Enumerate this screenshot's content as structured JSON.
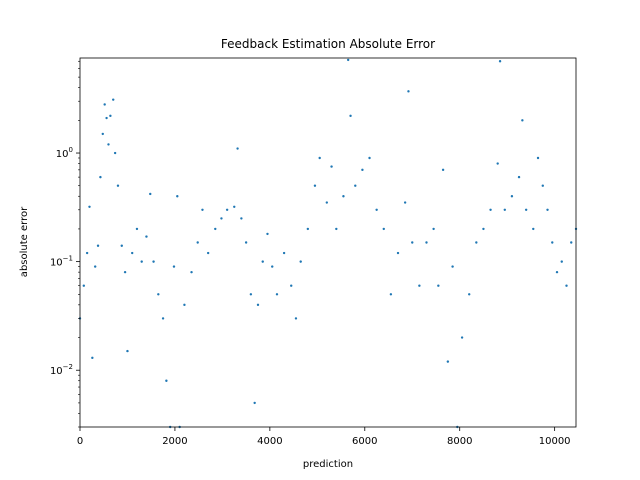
{
  "chart_data": {
    "type": "scatter",
    "title": "Feedback Estimation Absolute Error",
    "xlabel": "prediction",
    "ylabel": "absolute error",
    "xlim": [
      0,
      10450
    ],
    "ylim": [
      0.003,
      7.5
    ],
    "yscale": "log",
    "grid": false,
    "legend": "none",
    "point_color": "#1f77b4",
    "x_ticks": [
      0,
      2000,
      4000,
      6000,
      8000,
      10000
    ],
    "y_ticks": [
      {
        "value": 0.01,
        "label": "10",
        "exp": "−2"
      },
      {
        "value": 0.1,
        "label": "10",
        "exp": "−1"
      },
      {
        "value": 1,
        "label": "10",
        "exp": "0"
      }
    ],
    "series": [
      {
        "values": [
          [
            0,
            0.03
          ],
          [
            80,
            0.06
          ],
          [
            150,
            0.12
          ],
          [
            200,
            0.32
          ],
          [
            260,
            0.013
          ],
          [
            320,
            0.09
          ],
          [
            380,
            0.14
          ],
          [
            430,
            0.6
          ],
          [
            480,
            1.5
          ],
          [
            520,
            2.8
          ],
          [
            560,
            2.1
          ],
          [
            600,
            1.2
          ],
          [
            640,
            2.2
          ],
          [
            700,
            3.1
          ],
          [
            740,
            1.0
          ],
          [
            800,
            0.5
          ],
          [
            880,
            0.14
          ],
          [
            950,
            0.08
          ],
          [
            1000,
            0.015
          ],
          [
            1100,
            0.12
          ],
          [
            1200,
            0.2
          ],
          [
            1300,
            0.1
          ],
          [
            1400,
            0.17
          ],
          [
            1480,
            0.42
          ],
          [
            1550,
            0.1
          ],
          [
            1650,
            0.05
          ],
          [
            1750,
            0.03
          ],
          [
            1820,
            0.008
          ],
          [
            1900,
            0.003
          ],
          [
            1980,
            0.09
          ],
          [
            2050,
            0.4
          ],
          [
            2100,
            0.003
          ],
          [
            2200,
            0.04
          ],
          [
            2350,
            0.08
          ],
          [
            2480,
            0.15
          ],
          [
            2580,
            0.3
          ],
          [
            2700,
            0.12
          ],
          [
            2850,
            0.2
          ],
          [
            2980,
            0.25
          ],
          [
            3100,
            0.3
          ],
          [
            3250,
            0.32
          ],
          [
            3320,
            1.1
          ],
          [
            3400,
            0.25
          ],
          [
            3500,
            0.15
          ],
          [
            3600,
            0.05
          ],
          [
            3680,
            0.005
          ],
          [
            3750,
            0.04
          ],
          [
            3850,
            0.1
          ],
          [
            3950,
            0.18
          ],
          [
            4050,
            0.09
          ],
          [
            4150,
            0.05
          ],
          [
            4300,
            0.12
          ],
          [
            4450,
            0.06
          ],
          [
            4550,
            0.03
          ],
          [
            4650,
            0.1
          ],
          [
            4800,
            0.2
          ],
          [
            4950,
            0.5
          ],
          [
            5050,
            0.9
          ],
          [
            5200,
            0.35
          ],
          [
            5300,
            0.75
          ],
          [
            5400,
            0.2
          ],
          [
            5550,
            0.4
          ],
          [
            5650,
            7.2
          ],
          [
            5700,
            2.2
          ],
          [
            5800,
            0.5
          ],
          [
            5950,
            0.7
          ],
          [
            6100,
            0.9
          ],
          [
            6250,
            0.3
          ],
          [
            6400,
            0.2
          ],
          [
            6550,
            0.05
          ],
          [
            6700,
            0.12
          ],
          [
            6850,
            0.35
          ],
          [
            6920,
            3.7
          ],
          [
            7000,
            0.15
          ],
          [
            7150,
            0.06
          ],
          [
            7300,
            0.15
          ],
          [
            7450,
            0.2
          ],
          [
            7550,
            0.06
          ],
          [
            7650,
            0.7
          ],
          [
            7750,
            0.012
          ],
          [
            7850,
            0.09
          ],
          [
            7950,
            0.003
          ],
          [
            8050,
            0.02
          ],
          [
            8200,
            0.05
          ],
          [
            8350,
            0.15
          ],
          [
            8500,
            0.2
          ],
          [
            8650,
            0.3
          ],
          [
            8800,
            0.8
          ],
          [
            8850,
            7.0
          ],
          [
            8950,
            0.3
          ],
          [
            9100,
            0.4
          ],
          [
            9250,
            0.6
          ],
          [
            9320,
            2.0
          ],
          [
            9400,
            0.3
          ],
          [
            9550,
            0.2
          ],
          [
            9650,
            0.9
          ],
          [
            9750,
            0.5
          ],
          [
            9850,
            0.3
          ],
          [
            9950,
            0.15
          ],
          [
            10050,
            0.08
          ],
          [
            10150,
            0.1
          ],
          [
            10250,
            0.06
          ],
          [
            10350,
            0.15
          ],
          [
            10450,
            0.2
          ]
        ]
      }
    ]
  }
}
